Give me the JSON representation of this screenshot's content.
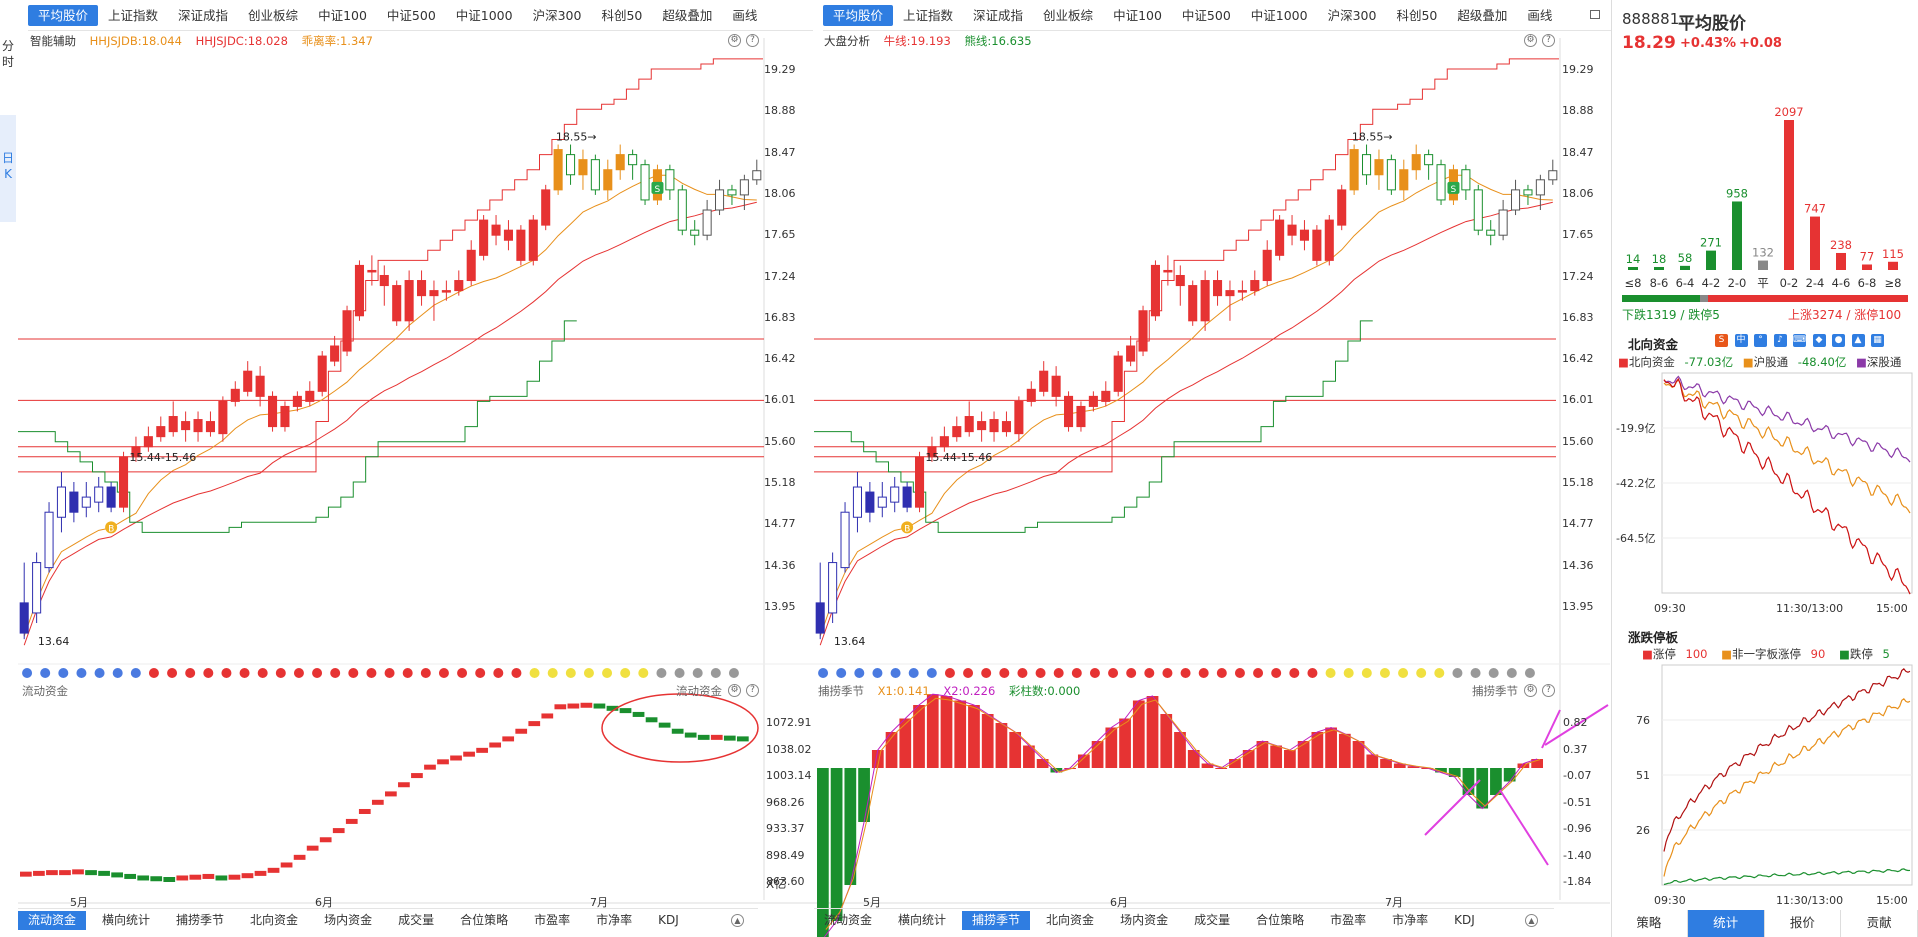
{
  "colors": {
    "up": "#e63333",
    "down": "#1a8f2e",
    "blue": "#2f7de1",
    "orange": "#e8901b",
    "purple": "#8b3aa8"
  },
  "left_tabs": [
    "平均股价",
    "上证指数",
    "深证成指",
    "创业板综",
    "中证100",
    "中证500",
    "中证1000",
    "沪深300",
    "科创50",
    "超级叠加",
    "画线"
  ],
  "right_tabs": [
    "平均股价",
    "上证指数",
    "深证成指",
    "创业板综",
    "中证100",
    "中证500",
    "中证1000",
    "沪深300",
    "科创50",
    "超级叠加",
    "画线"
  ],
  "side_tabs": {
    "fenshi": "分时",
    "rik": "日K"
  },
  "left_panel": {
    "indicator": "智能辅助",
    "line1": "HHJSJDB:18.044",
    "line2": "HHJSJDC:18.028",
    "line3": "乖离率:1.347",
    "sub_title": "流动资金",
    "sub_title_right": "流动资金",
    "sub_ylabels": [
      "1072.91",
      "1038.02",
      "1003.14",
      "968.26",
      "933.37",
      "898.49",
      "863.60"
    ],
    "sub_unit": "X亿",
    "bottom_tabs": [
      "流动资金",
      "横向统计",
      "捕捞季节",
      "北向资金",
      "场内资金",
      "成交量",
      "合位策略",
      "市盈率",
      "市净率",
      "KDJ"
    ]
  },
  "right_panel": {
    "indicator": "大盘分析",
    "line1": "牛线:19.193",
    "line2": "熊线:16.635",
    "sub_title": "捕捞季节",
    "sub_title_right": "捕捞季节",
    "x1": "X1:0.141",
    "x2": "X2:0.226",
    "bar": "彩柱数:0.000",
    "sub_ylabels": [
      "0.82",
      "0.37",
      "-0.07",
      "-0.51",
      "-0.96",
      "-1.40",
      "-1.84"
    ],
    "bottom_tabs": [
      "流动资金",
      "横向统计",
      "捕捞季节",
      "北向资金",
      "场内资金",
      "成交量",
      "合位策略",
      "市盈率",
      "市净率",
      "KDJ"
    ]
  },
  "main_ylabels": [
    "19.29",
    "18.88",
    "18.47",
    "18.06",
    "17.65",
    "17.24",
    "16.83",
    "16.42",
    "16.01",
    "15.60",
    "15.18",
    "14.77",
    "14.36",
    "13.95"
  ],
  "annotations": {
    "range": "15.44-15.46",
    "low": "13.64",
    "high": "18.55",
    "buy": "B",
    "sell": "S"
  },
  "months": [
    "5月",
    "6月",
    "7月"
  ],
  "stock": {
    "code": "888881",
    "name": "平均股价",
    "price": "18.29",
    "pct": "+0.43%",
    "chg": "+0.08"
  },
  "distribution": {
    "labels": [
      "≤8",
      "8-6",
      "6-4",
      "4-2",
      "2-0",
      "平",
      "0-2",
      "2-4",
      "4-6",
      "6-8",
      "≥8"
    ],
    "values": [
      14,
      18,
      58,
      271,
      958,
      132,
      2097,
      747,
      238,
      77,
      115
    ],
    "down_text": "下跌1319 / 跌停5",
    "up_text": "上涨3274 / 涨停100"
  },
  "north": {
    "title": "北向资金",
    "legend": [
      {
        "name": "北向资金",
        "value": "-77.03亿"
      },
      {
        "name": "沪股通",
        "value": "-48.40亿"
      },
      {
        "name": "深股通",
        "value": ""
      }
    ],
    "ylabels": [
      "-19.9亿",
      "-42.2亿",
      "-64.5亿"
    ],
    "xlabels": [
      "09:30",
      "11:30/13:00",
      "15:00"
    ]
  },
  "limit": {
    "title": "涨跌停板",
    "legend": [
      {
        "name": "涨停",
        "value": "100"
      },
      {
        "name": "非一字板涨停",
        "value": "90"
      },
      {
        "name": "跌停",
        "value": "5"
      }
    ],
    "ylabels": [
      "76",
      "51",
      "26"
    ],
    "xlabels": [
      "09:30",
      "11:30/13:00",
      "15:00"
    ]
  },
  "right_bottom_tabs": [
    "策略",
    "统计",
    "报价",
    "贡献"
  ]
}
